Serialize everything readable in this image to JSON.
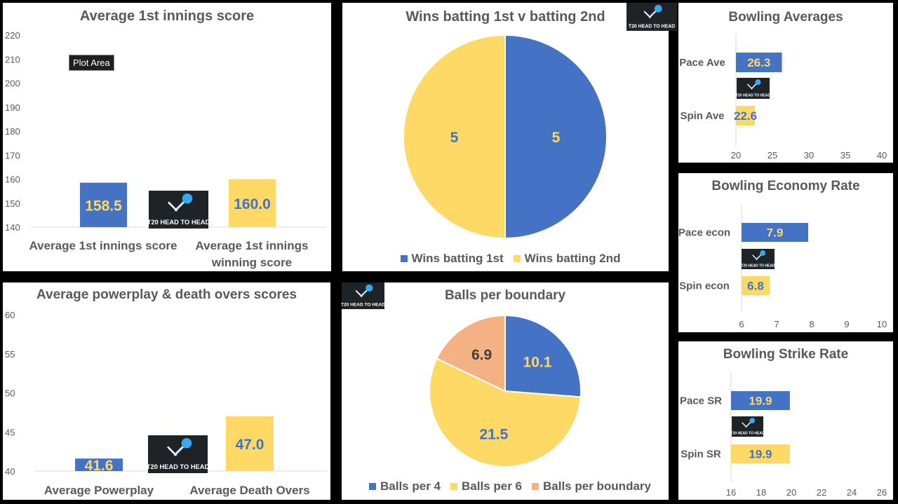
{
  "logo_text": "T20 HEAD TO HEAD",
  "colors": {
    "blue": "#4472c4",
    "yellow": "#ffd966",
    "peach": "#f4b183",
    "axis": "#595959",
    "grid": "#d9d9d9"
  },
  "tooltip": "Plot Area",
  "chart_data": [
    {
      "id": "c1",
      "type": "bar",
      "title": "Average 1st innings score",
      "categories": [
        "Average 1st innings score",
        "Average 1st innings winning score"
      ],
      "values": [
        158.5,
        160.0
      ],
      "labels": [
        "158.5",
        "160.0"
      ],
      "colors": [
        "blue",
        "yellow"
      ],
      "ylim": [
        140,
        220
      ],
      "yticks": [
        "140",
        "150",
        "160",
        "170",
        "180",
        "190",
        "200",
        "210",
        "220"
      ],
      "grid": false
    },
    {
      "id": "c2",
      "type": "pie",
      "title": "Wins batting 1st v batting 2nd",
      "categories": [
        "Wins batting 1st",
        "Wins batting 2nd"
      ],
      "values": [
        5,
        5
      ],
      "labels": [
        "5",
        "5"
      ],
      "colors": [
        "blue",
        "yellow"
      ],
      "legend": "bottom"
    },
    {
      "id": "c3",
      "type": "bar",
      "orientation": "horizontal",
      "title": "Bowling Averages",
      "categories": [
        "Pace Ave",
        "Spin Ave"
      ],
      "values": [
        26.3,
        22.6
      ],
      "labels": [
        "26.3",
        "22.6"
      ],
      "colors": [
        "blue",
        "yellow"
      ],
      "xlim": [
        20,
        40
      ],
      "xticks": [
        "20",
        "25",
        "30",
        "35",
        "40"
      ]
    },
    {
      "id": "c4",
      "type": "bar",
      "orientation": "horizontal",
      "title": "Bowling Economy Rate",
      "categories": [
        "Pace econ",
        "Spin econ"
      ],
      "values": [
        7.9,
        6.8
      ],
      "labels": [
        "7.9",
        "6.8"
      ],
      "colors": [
        "blue",
        "yellow"
      ],
      "xlim": [
        6,
        10
      ],
      "xticks": [
        "6",
        "7",
        "8",
        "9",
        "10"
      ]
    },
    {
      "id": "c5",
      "type": "bar",
      "title": "Average powerplay & death overs scores",
      "categories": [
        "Average Powerplay",
        "Average Death Overs"
      ],
      "values": [
        41.6,
        47.0
      ],
      "labels": [
        "41.6",
        "47.0"
      ],
      "colors": [
        "blue",
        "yellow"
      ],
      "ylim": [
        40,
        60
      ],
      "yticks": [
        "40",
        "45",
        "50",
        "55",
        "60"
      ],
      "grid": false
    },
    {
      "id": "c6",
      "type": "pie",
      "title": "Balls per boundary",
      "categories": [
        "Balls per 4",
        "Balls per 6",
        "Balls per boundary"
      ],
      "values": [
        10.1,
        21.5,
        6.9
      ],
      "labels": [
        "10.1",
        "21.5",
        "6.9"
      ],
      "colors": [
        "blue",
        "yellow",
        "peach"
      ],
      "legend": "bottom"
    },
    {
      "id": "c7",
      "type": "bar",
      "orientation": "horizontal",
      "title": "Bowling Strike Rate",
      "categories": [
        "Pace SR",
        "Spin SR"
      ],
      "values": [
        19.9,
        19.9
      ],
      "labels": [
        "19.9",
        "19.9"
      ],
      "colors": [
        "blue",
        "yellow"
      ],
      "xlim": [
        16,
        26
      ],
      "xticks": [
        "16",
        "18",
        "20",
        "22",
        "24",
        "26"
      ]
    }
  ]
}
